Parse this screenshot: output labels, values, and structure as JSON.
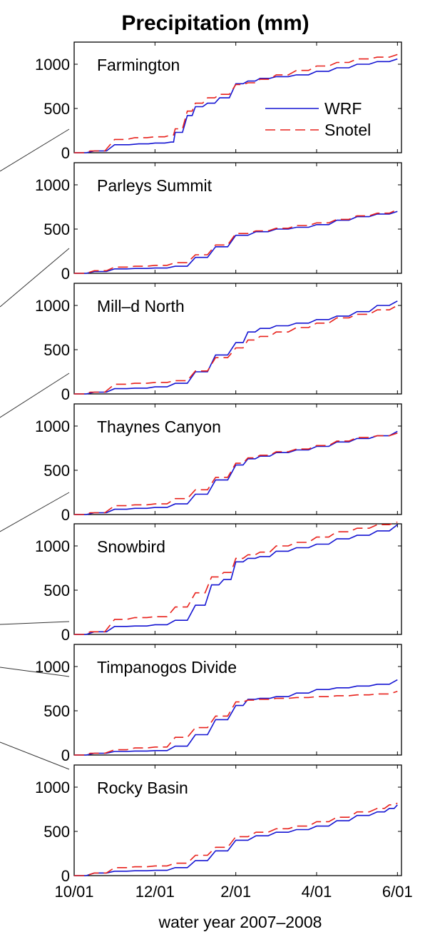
{
  "title": "Precipitation (mm)",
  "xlabel": "water year 2007–2008",
  "legend": [
    {
      "label": "WRF",
      "color": "#1414d2",
      "dash": "solid"
    },
    {
      "label": "Snotel",
      "color": "#e8211b",
      "dash": "dashed"
    }
  ],
  "chart_data": {
    "type": "line",
    "xlim": [
      0,
      8.1
    ],
    "ylim": [
      0,
      1250
    ],
    "x_ticks": [
      0,
      2,
      4,
      6,
      8
    ],
    "x_tick_labels": [
      "10/01",
      "12/01",
      "2/01",
      "4/01",
      "6/01"
    ],
    "y_ticks": [
      0,
      500,
      1000
    ],
    "y_tick_labels": [
      "0",
      "500",
      "1000"
    ],
    "panels": [
      {
        "name": "Farmington",
        "series": [
          {
            "name": "WRF",
            "x": [
              0,
              0.5,
              1.0,
              1.6,
              2.0,
              2.4,
              2.5,
              2.8,
              3.0,
              3.3,
              3.6,
              4.0,
              4.3,
              4.6,
              5.0,
              5.5,
              6.0,
              6.5,
              7.0,
              7.5,
              8.0
            ],
            "y": [
              0,
              20,
              90,
              100,
              110,
              120,
              230,
              420,
              520,
              560,
              620,
              780,
              810,
              840,
              860,
              880,
              920,
              960,
              1000,
              1030,
              1060
            ]
          },
          {
            "name": "Snotel",
            "x": [
              0,
              0.4,
              1.0,
              1.5,
              2.0,
              2.4,
              2.5,
              2.8,
              3.0,
              3.3,
              3.6,
              4.0,
              4.3,
              4.6,
              5.0,
              5.5,
              6.0,
              6.5,
              7.0,
              7.5,
              8.0
            ],
            "y": [
              0,
              20,
              150,
              170,
              180,
              200,
              270,
              470,
              560,
              620,
              660,
              770,
              790,
              830,
              880,
              930,
              980,
              1020,
              1060,
              1080,
              1110
            ]
          }
        ]
      },
      {
        "name": "Parleys Summit",
        "series": [
          {
            "name": "WRF",
            "x": [
              0,
              0.5,
              1.0,
              1.5,
              2.0,
              2.5,
              3.0,
              3.5,
              4.0,
              4.5,
              5.0,
              5.5,
              6.0,
              6.5,
              7.0,
              7.5,
              8.0
            ],
            "y": [
              0,
              20,
              50,
              55,
              60,
              80,
              180,
              300,
              430,
              470,
              500,
              520,
              550,
              600,
              640,
              670,
              700
            ]
          },
          {
            "name": "Snotel",
            "x": [
              0,
              0.5,
              1.0,
              1.5,
              2.0,
              2.5,
              3.0,
              3.5,
              4.0,
              4.5,
              5.0,
              5.5,
              6.0,
              6.5,
              7.0,
              7.5,
              8.0
            ],
            "y": [
              0,
              30,
              70,
              80,
              90,
              120,
              210,
              320,
              450,
              480,
              510,
              540,
              570,
              610,
              650,
              680,
              720
            ]
          }
        ]
      },
      {
        "name": "Mill–d North",
        "series": [
          {
            "name": "WRF",
            "x": [
              0,
              0.5,
              1.0,
              1.5,
              2.0,
              2.5,
              3.0,
              3.5,
              4.0,
              4.3,
              4.6,
              5.0,
              5.5,
              6.0,
              6.5,
              7.0,
              7.5,
              8.0
            ],
            "y": [
              0,
              20,
              60,
              65,
              80,
              120,
              250,
              440,
              580,
              700,
              740,
              770,
              800,
              840,
              880,
              930,
              1000,
              1050
            ]
          },
          {
            "name": "Snotel",
            "x": [
              0,
              0.4,
              1.0,
              1.5,
              2.0,
              2.5,
              3.0,
              3.5,
              4.0,
              4.3,
              4.6,
              5.0,
              5.5,
              6.0,
              6.5,
              7.0,
              7.5,
              8.0
            ],
            "y": [
              0,
              20,
              110,
              120,
              130,
              150,
              260,
              410,
              520,
              610,
              650,
              700,
              750,
              800,
              860,
              900,
              950,
              1000
            ]
          }
        ]
      },
      {
        "name": "Thaynes Canyon",
        "series": [
          {
            "name": "WRF",
            "x": [
              0,
              0.5,
              1.0,
              1.5,
              2.0,
              2.5,
              3.0,
              3.5,
              4.0,
              4.3,
              4.6,
              5.0,
              5.5,
              6.0,
              6.5,
              7.0,
              7.5,
              8.0
            ],
            "y": [
              0,
              20,
              60,
              70,
              80,
              120,
              230,
              390,
              560,
              630,
              660,
              700,
              730,
              770,
              820,
              860,
              890,
              940
            ]
          },
          {
            "name": "Snotel",
            "x": [
              0,
              0.4,
              1.0,
              1.5,
              2.0,
              2.5,
              3.0,
              3.5,
              4.0,
              4.3,
              4.6,
              5.0,
              5.5,
              6.0,
              6.5,
              7.0,
              7.5,
              8.0
            ],
            "y": [
              0,
              20,
              100,
              110,
              120,
              180,
              280,
              420,
              580,
              640,
              670,
              710,
              740,
              780,
              830,
              870,
              890,
              920
            ]
          }
        ]
      },
      {
        "name": "Snowbird",
        "series": [
          {
            "name": "WRF",
            "x": [
              0,
              0.5,
              1.0,
              1.5,
              2.0,
              2.5,
              3.0,
              3.4,
              3.7,
              4.0,
              4.3,
              4.6,
              5.0,
              5.5,
              6.0,
              6.5,
              7.0,
              7.5,
              8.0
            ],
            "y": [
              0,
              30,
              90,
              95,
              110,
              160,
              330,
              560,
              620,
              820,
              860,
              880,
              940,
              980,
              1020,
              1080,
              1120,
              1170,
              1240
            ]
          },
          {
            "name": "Snotel",
            "x": [
              0,
              0.4,
              1.0,
              1.5,
              2.0,
              2.5,
              3.0,
              3.4,
              3.7,
              4.0,
              4.3,
              4.6,
              5.0,
              5.5,
              6.0,
              6.5,
              7.0,
              7.5,
              8.0
            ],
            "y": [
              0,
              30,
              170,
              190,
              200,
              310,
              470,
              650,
              700,
              860,
              900,
              930,
              1000,
              1040,
              1100,
              1160,
              1200,
              1240,
              1270
            ]
          }
        ]
      },
      {
        "name": "Timpanogos Divide",
        "series": [
          {
            "name": "WRF",
            "x": [
              0,
              0.5,
              1.0,
              1.5,
              2.0,
              2.5,
              3.0,
              3.5,
              4.0,
              4.3,
              4.6,
              5.0,
              5.5,
              6.0,
              6.5,
              7.0,
              7.5,
              8.0
            ],
            "y": [
              0,
              20,
              40,
              45,
              50,
              100,
              230,
              400,
              560,
              630,
              640,
              660,
              700,
              740,
              760,
              780,
              800,
              850
            ]
          },
          {
            "name": "Snotel",
            "x": [
              0,
              0.4,
              1.0,
              1.5,
              2.0,
              2.5,
              3.0,
              3.5,
              4.0,
              4.3,
              4.6,
              5.0,
              5.5,
              6.0,
              6.5,
              7.0,
              7.5,
              8.0
            ],
            "y": [
              0,
              20,
              60,
              80,
              90,
              200,
              310,
              440,
              600,
              620,
              630,
              640,
              650,
              660,
              670,
              680,
              690,
              720
            ]
          }
        ]
      },
      {
        "name": "Rocky Basin",
        "series": [
          {
            "name": "WRF",
            "x": [
              0,
              0.5,
              1.0,
              1.5,
              2.0,
              2.5,
              3.0,
              3.5,
              4.0,
              4.5,
              5.0,
              5.5,
              6.0,
              6.5,
              7.0,
              7.5,
              7.8,
              8.0
            ],
            "y": [
              0,
              30,
              50,
              55,
              60,
              90,
              170,
              280,
              400,
              450,
              490,
              520,
              560,
              620,
              680,
              720,
              760,
              800
            ]
          },
          {
            "name": "Snotel",
            "x": [
              0,
              0.5,
              1.0,
              1.5,
              2.0,
              2.5,
              3.0,
              3.5,
              4.0,
              4.5,
              5.0,
              5.5,
              6.0,
              6.5,
              7.0,
              7.5,
              7.8,
              8.0
            ],
            "y": [
              0,
              30,
              90,
              100,
              110,
              140,
              230,
              320,
              440,
              490,
              530,
              560,
              610,
              660,
              720,
              760,
              800,
              820
            ]
          }
        ]
      }
    ]
  }
}
